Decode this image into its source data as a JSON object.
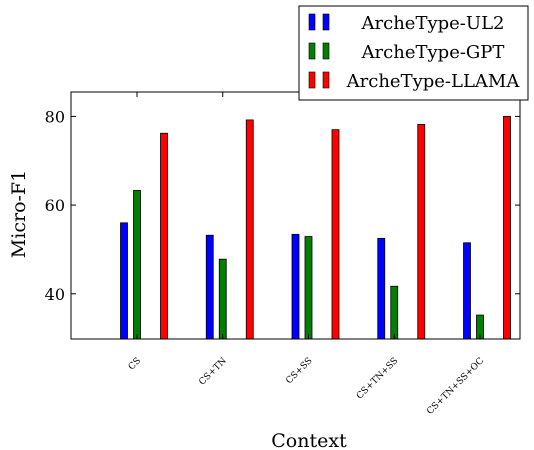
{
  "chart_data": {
    "type": "bar",
    "title": "",
    "xlabel": "Context",
    "ylabel": "Micro-F1",
    "categories": [
      "CS",
      "CS+TN",
      "CS+SS",
      "CS+TN+SS",
      "CS+TN+SS+OC"
    ],
    "series": [
      {
        "name": "ArcheType-UL2",
        "color": "#0000ff",
        "values": [
          56.0,
          53.2,
          53.4,
          52.5,
          51.5
        ]
      },
      {
        "name": "ArcheType-GPT",
        "color": "#007f00",
        "values": [
          63.3,
          47.8,
          52.9,
          41.7,
          35.2
        ]
      },
      {
        "name": "ArcheType-LLAMA",
        "color": "#ff0000",
        "values": [
          76.2,
          79.2,
          77.0,
          78.2,
          80.0
        ]
      }
    ],
    "ylim": [
      29.8,
      85.5
    ],
    "yticks": [
      40,
      60,
      80
    ],
    "grid": false,
    "legend_position": "top-right"
  }
}
